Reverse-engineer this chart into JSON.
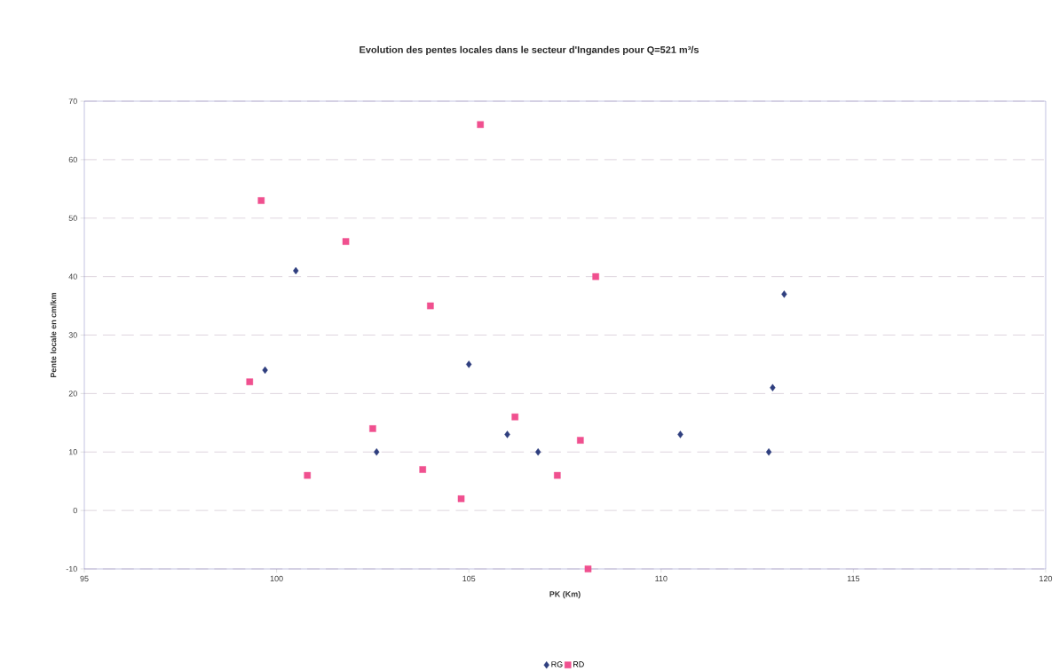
{
  "chart_data": {
    "type": "scatter",
    "title": "Evolution des pentes locales dans le secteur d'Ingandes pour Q=521 m³/s",
    "xlabel": "PK (Km)",
    "ylabel": "Pente locale en cm/km",
    "xlim": [
      95,
      120
    ],
    "xticks": [
      95,
      100,
      105,
      110,
      115,
      120
    ],
    "ylim": [
      -10,
      70
    ],
    "yticks": [
      -10,
      0,
      10,
      20,
      30,
      40,
      50,
      60,
      70
    ],
    "grid": "y",
    "legend": "bottom",
    "series": [
      {
        "name": "RG",
        "color": "#2f3f7f",
        "marker": "diamond",
        "x": [
          99.7,
          100.5,
          102.6,
          105.0,
          106.0,
          106.8,
          110.5,
          112.8,
          112.9,
          113.2
        ],
        "values": [
          24,
          41,
          10,
          25,
          13,
          10,
          13,
          10,
          21,
          37
        ]
      },
      {
        "name": "RD",
        "color": "#f0508f",
        "marker": "square",
        "x": [
          99.3,
          99.6,
          100.8,
          101.8,
          102.5,
          103.8,
          104.0,
          104.8,
          105.3,
          106.2,
          107.3,
          107.9,
          108.1,
          108.3
        ],
        "values": [
          22,
          53,
          6,
          46,
          14,
          7,
          35,
          2,
          66,
          16,
          6,
          12,
          -10,
          40
        ]
      }
    ]
  }
}
